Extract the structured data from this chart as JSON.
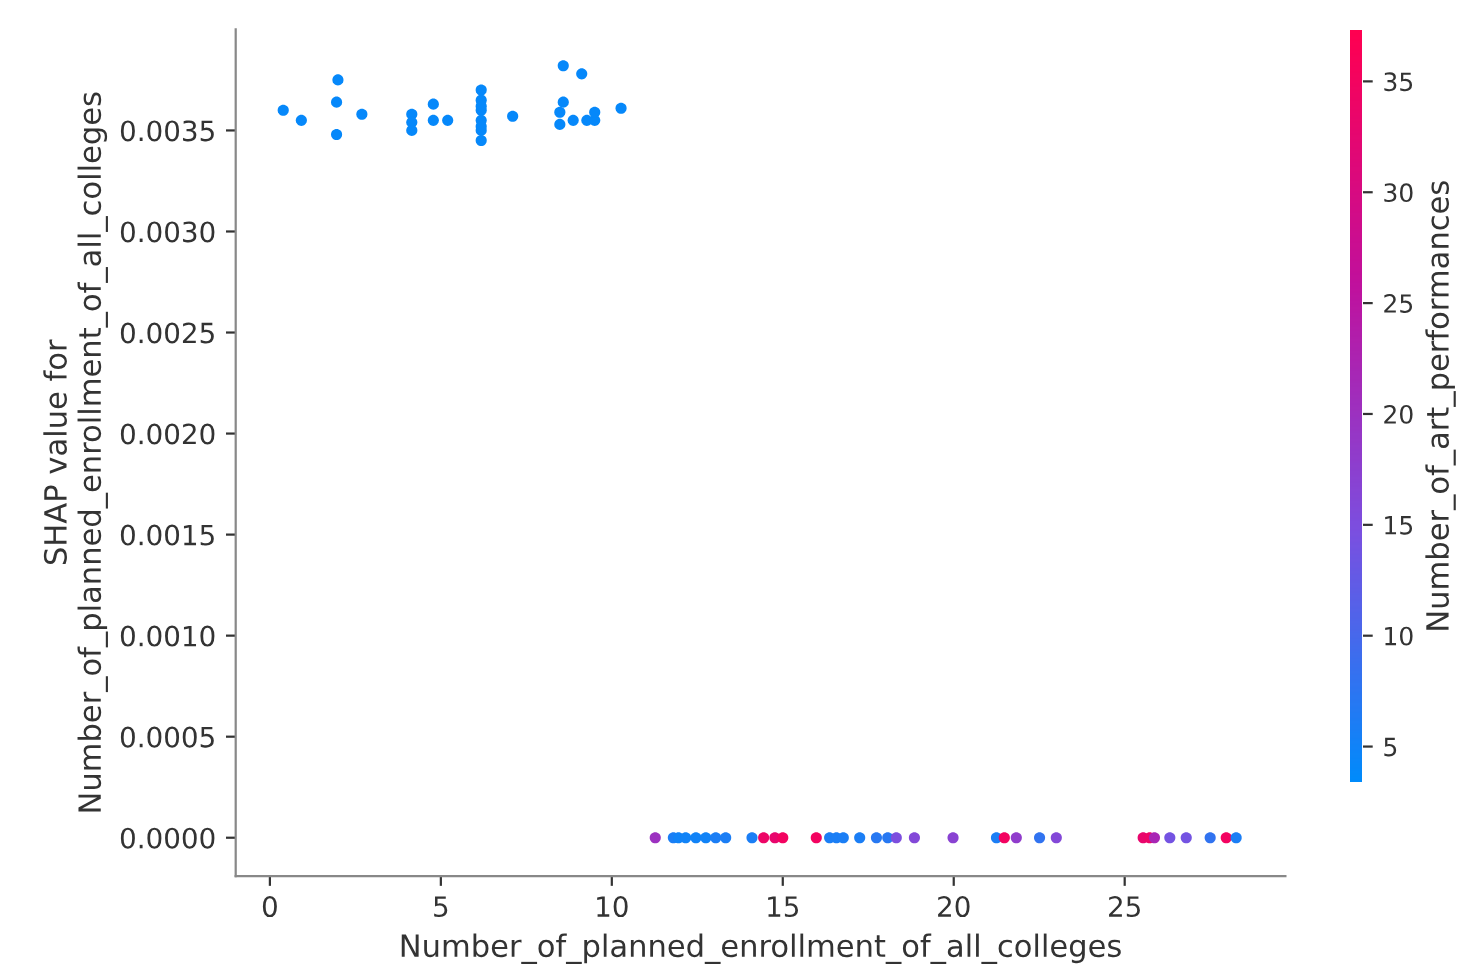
{
  "chart_data": {
    "type": "scatter",
    "xlabel": "Number_of_planned_enrollment_of_all_colleges",
    "ylabel": "SHAP value for\nNumber_of_planned_enrollment_of_all_colleges",
    "clabel": "Number_of_art_performances",
    "x": [
      0.39,
      0.92,
      1.99,
      1.95,
      1.95,
      2.69,
      4.15,
      4.15,
      4.15,
      4.78,
      4.78,
      5.2,
      6.18,
      6.18,
      6.18,
      6.18,
      6.18,
      6.18,
      6.18,
      6.18,
      7.1,
      8.58,
      9.12,
      8.58,
      8.48,
      8.48,
      8.87,
      9.27,
      9.5,
      9.5,
      10.27,
      11.27,
      11.8,
      11.95,
      12.16,
      12.46,
      12.75,
      13.04,
      13.33,
      14.1,
      14.44,
      14.77,
      15.0,
      15.98,
      16.37,
      16.57,
      16.77,
      17.25,
      17.74,
      18.07,
      18.32,
      18.85,
      19.98,
      21.25,
      21.48,
      21.83,
      22.51,
      23.0,
      25.54,
      25.73,
      25.87,
      26.32,
      26.8,
      27.5,
      27.97,
      28.26
    ],
    "values": [
      0.0036,
      0.00355,
      0.00375,
      0.00364,
      0.00348,
      0.00358,
      0.00358,
      0.00354,
      0.0035,
      0.00363,
      0.00355,
      0.00355,
      0.0037,
      0.00365,
      0.0036,
      0.00355,
      0.0035,
      0.00345,
      0.00362,
      0.00352,
      0.00357,
      0.00382,
      0.00378,
      0.00364,
      0.00359,
      0.00353,
      0.00355,
      0.00355,
      0.00355,
      0.00359,
      0.00361,
      0,
      0,
      0,
      0,
      0,
      0,
      0,
      0,
      0,
      0,
      0,
      0,
      0,
      0,
      0,
      0,
      0,
      0,
      0,
      0,
      0,
      0,
      0,
      0,
      0,
      0,
      0,
      0,
      0,
      0,
      0,
      0,
      0,
      0,
      0
    ],
    "cvalues": [
      4,
      4,
      4,
      4,
      4,
      4,
      4,
      4,
      4,
      4,
      4,
      4,
      4,
      4,
      4,
      4,
      4,
      4,
      4,
      4,
      4,
      4,
      4,
      4,
      4,
      4,
      4,
      4,
      4,
      4,
      4,
      20,
      6,
      5,
      5,
      5,
      5,
      6,
      6,
      6,
      34,
      33,
      35,
      35,
      6,
      6,
      6,
      6,
      7,
      7,
      15,
      16,
      17,
      6,
      35,
      18,
      8,
      16,
      33,
      34,
      22,
      14,
      14,
      8,
      35,
      6
    ],
    "xlim": [
      -1.0,
      29.7
    ],
    "xticks": [
      0,
      5,
      10,
      15,
      20,
      25
    ],
    "ylim": [
      -0.00019,
      0.004
    ],
    "yticks": [
      {
        "value": 0,
        "label": "0.0000"
      },
      {
        "value": 0.0005,
        "label": "0.0005"
      },
      {
        "value": 0.001,
        "label": "0.0010"
      },
      {
        "value": 0.0015,
        "label": "0.0015"
      },
      {
        "value": 0.002,
        "label": "0.0020"
      },
      {
        "value": 0.0025,
        "label": "0.0025"
      },
      {
        "value": 0.003,
        "label": "0.0030"
      },
      {
        "value": 0.0035,
        "label": "0.0035"
      }
    ],
    "clim": [
      3.4,
      37.3
    ],
    "cticks": [
      5,
      10,
      15,
      20,
      25,
      30,
      35
    ],
    "grid": false,
    "legend": false,
    "marker": "circle"
  }
}
